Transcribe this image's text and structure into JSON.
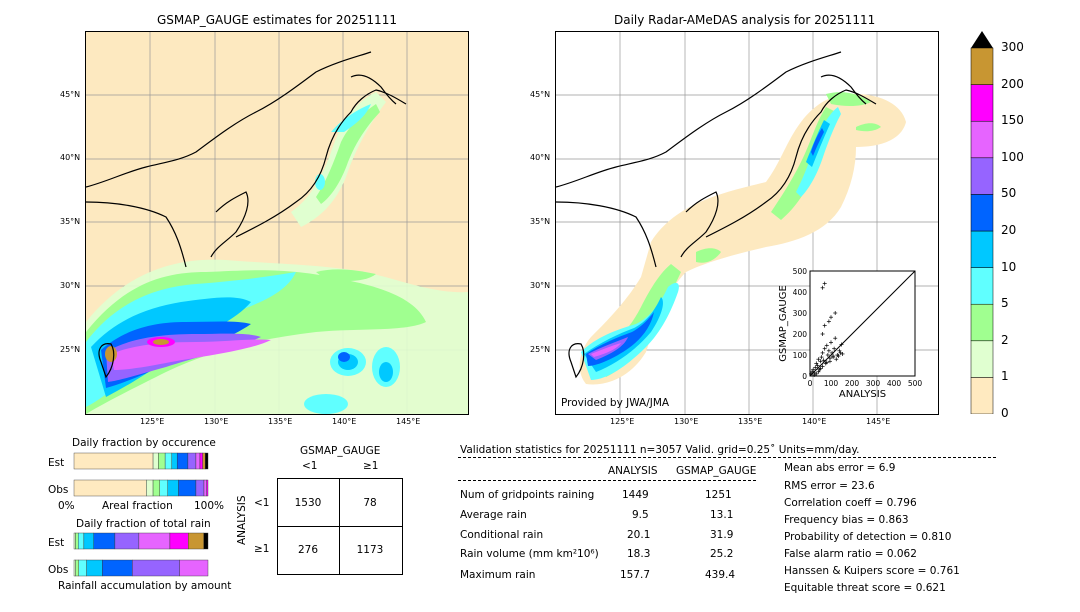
{
  "left_map": {
    "title": "GSMAP_GAUGE estimates for 20251111",
    "lat_labels": [
      "45°N",
      "40°N",
      "35°N",
      "30°N",
      "25°N"
    ],
    "lon_labels": [
      "125°E",
      "130°E",
      "135°E",
      "140°E",
      "145°E"
    ]
  },
  "right_map": {
    "title": "Daily Radar-AMeDAS analysis for 20251111",
    "lat_labels": [
      "45°N",
      "40°N",
      "35°N",
      "30°N",
      "25°N"
    ],
    "lon_labels": [
      "125°E",
      "130°E",
      "135°E",
      "140°E",
      "145°E"
    ],
    "credit": "Provided by JWA/JMA"
  },
  "colorbar": {
    "labels": [
      "300",
      "200",
      "150",
      "100",
      "50",
      "20",
      "10",
      "5",
      "2",
      "1",
      "0"
    ],
    "colors": [
      "#ffeac0",
      "#e0ffd0",
      "#a0ff90",
      "#60ffff",
      "#00c8ff",
      "#0064ff",
      "#9664ff",
      "#e664ff",
      "#ff00ff",
      "#c89632"
    ]
  },
  "scatter": {
    "xlabel": "ANALYSIS",
    "ylabel": "GSMAP_GAUGE",
    "ticks": [
      "0",
      "100",
      "200",
      "300",
      "400",
      "500"
    ]
  },
  "occurrence": {
    "title": "Daily fraction by occurence",
    "row_est": "Est",
    "row_obs": "Obs",
    "axis_left": "0%",
    "axis_mid": "Areal fraction",
    "axis_right": "100%"
  },
  "total_rain": {
    "title": "Daily fraction of total rain",
    "row_est": "Est",
    "row_obs": "Obs",
    "footer": "Rainfall accumulation by amount"
  },
  "contingency": {
    "col_header": "GSMAP_GAUGE",
    "col_lt": "<1",
    "col_ge": "≥1",
    "row_header": "ANALYSIS",
    "row_lt": "<1",
    "row_ge": "≥1",
    "a": "1530",
    "b": "78",
    "c": "276",
    "d": "1173"
  },
  "validation": {
    "header": "Validation statistics for 20251111  n=3057 Valid. grid=0.25˚ Units=mm/day.",
    "col_analysis": "ANALYSIS",
    "col_gsmap": "GSMAP_GAUGE",
    "rows": [
      {
        "label": "Num of gridpoints raining",
        "analysis": "1449",
        "gsmap": "1251"
      },
      {
        "label": "Average rain",
        "analysis": "9.5",
        "gsmap": "13.1"
      },
      {
        "label": "Conditional rain",
        "analysis": "20.1",
        "gsmap": "31.9"
      },
      {
        "label": "Rain volume (mm km²10⁶)",
        "analysis": "18.3",
        "gsmap": "25.2"
      },
      {
        "label": "Maximum rain",
        "analysis": "157.7",
        "gsmap": "439.4"
      }
    ],
    "scores": [
      "Mean abs error =    6.9",
      "RMS error =   23.6",
      "Correlation coeff =  0.796",
      "Frequency bias =  0.863",
      "Probability of detection =  0.810",
      "False alarm ratio =  0.062",
      "Hanssen & Kuipers score =  0.761",
      "Equitable threat score =  0.621"
    ]
  },
  "chart_data": [
    {
      "type": "bar",
      "title": "Daily fraction by occurence",
      "categories": [
        "0",
        "1",
        "2",
        "5",
        "10",
        "20",
        "50",
        "100",
        "150",
        "200",
        "300"
      ],
      "series": [
        {
          "name": "Est",
          "values": [
            0.59,
            0.04,
            0.05,
            0.05,
            0.04,
            0.08,
            0.06,
            0.03,
            0.02,
            0.02,
            0.02
          ]
        },
        {
          "name": "Obs",
          "values": [
            0.54,
            0.05,
            0.05,
            0.06,
            0.08,
            0.13,
            0.06,
            0.02,
            0.01,
            0.0,
            0.0
          ]
        }
      ]
    },
    {
      "type": "bar",
      "title": "Daily fraction of total rain",
      "categories": [
        "1",
        "2",
        "5",
        "10",
        "20",
        "50",
        "100",
        "150",
        "200",
        "300"
      ],
      "series": [
        {
          "name": "Est",
          "values": [
            0.01,
            0.02,
            0.04,
            0.07,
            0.15,
            0.17,
            0.22,
            0.13,
            0.11,
            0.03
          ]
        },
        {
          "name": "Obs",
          "values": [
            0.01,
            0.02,
            0.05,
            0.1,
            0.19,
            0.3,
            0.18,
            0.0,
            0.0,
            0.0
          ]
        }
      ]
    },
    {
      "type": "scatter",
      "xlabel": "ANALYSIS",
      "ylabel": "GSMAP_GAUGE",
      "xlim": [
        0,
        500
      ],
      "ylim": [
        0,
        500
      ],
      "points": [
        [
          5,
          10
        ],
        [
          10,
          20
        ],
        [
          15,
          30
        ],
        [
          20,
          15
        ],
        [
          25,
          40
        ],
        [
          30,
          60
        ],
        [
          35,
          50
        ],
        [
          40,
          80
        ],
        [
          45,
          30
        ],
        [
          50,
          70
        ],
        [
          55,
          90
        ],
        [
          60,
          110
        ],
        [
          65,
          75
        ],
        [
          70,
          130
        ],
        [
          75,
          60
        ],
        [
          80,
          145
        ],
        [
          85,
          100
        ],
        [
          90,
          120
        ],
        [
          95,
          85
        ],
        [
          100,
          160
        ],
        [
          105,
          110
        ],
        [
          110,
          90
        ],
        [
          115,
          130
        ],
        [
          120,
          180
        ],
        [
          130,
          100
        ],
        [
          140,
          120
        ],
        [
          150,
          150
        ],
        [
          60,
          200
        ],
        [
          70,
          240
        ],
        [
          90,
          260
        ],
        [
          100,
          280
        ],
        [
          120,
          300
        ],
        [
          60,
          420
        ],
        [
          70,
          440
        ],
        [
          20,
          5
        ],
        [
          30,
          10
        ],
        [
          40,
          20
        ],
        [
          50,
          35
        ],
        [
          60,
          45
        ],
        [
          80,
          65
        ],
        [
          95,
          70
        ],
        [
          110,
          95
        ],
        [
          125,
          80
        ],
        [
          135,
          95
        ],
        [
          145,
          110
        ],
        [
          155,
          105
        ]
      ]
    }
  ]
}
